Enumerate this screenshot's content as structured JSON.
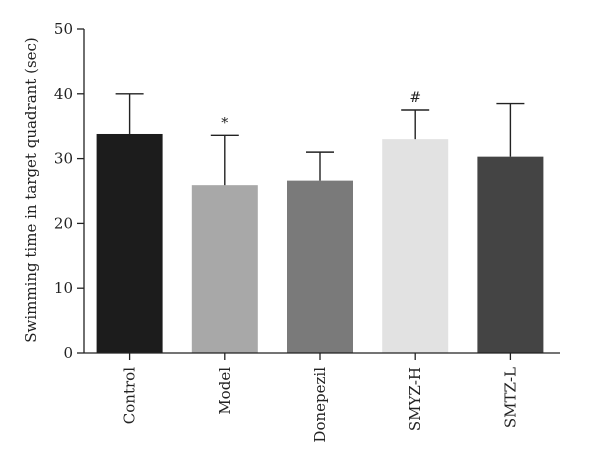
{
  "chart_data": {
    "type": "bar",
    "ylabel": "Swimming time in target quadrant (sec)",
    "xlabel": "",
    "ylim": [
      0,
      50
    ],
    "yticks": [
      0,
      10,
      20,
      30,
      40,
      50
    ],
    "grid": false,
    "categories": [
      "Control",
      "Model",
      "Donepezil",
      "SMYZ-H",
      "SMTZ-L"
    ],
    "values": [
      33.8,
      25.9,
      26.6,
      33.0,
      30.3
    ],
    "error_upper": [
      40.0,
      33.6,
      31.0,
      37.5,
      38.5
    ],
    "annotations": [
      "",
      "*",
      "",
      "#",
      ""
    ],
    "colors": [
      "#1c1c1c",
      "#a8a8a8",
      "#7a7a7a",
      "#e2e2e2",
      "#444444"
    ]
  }
}
